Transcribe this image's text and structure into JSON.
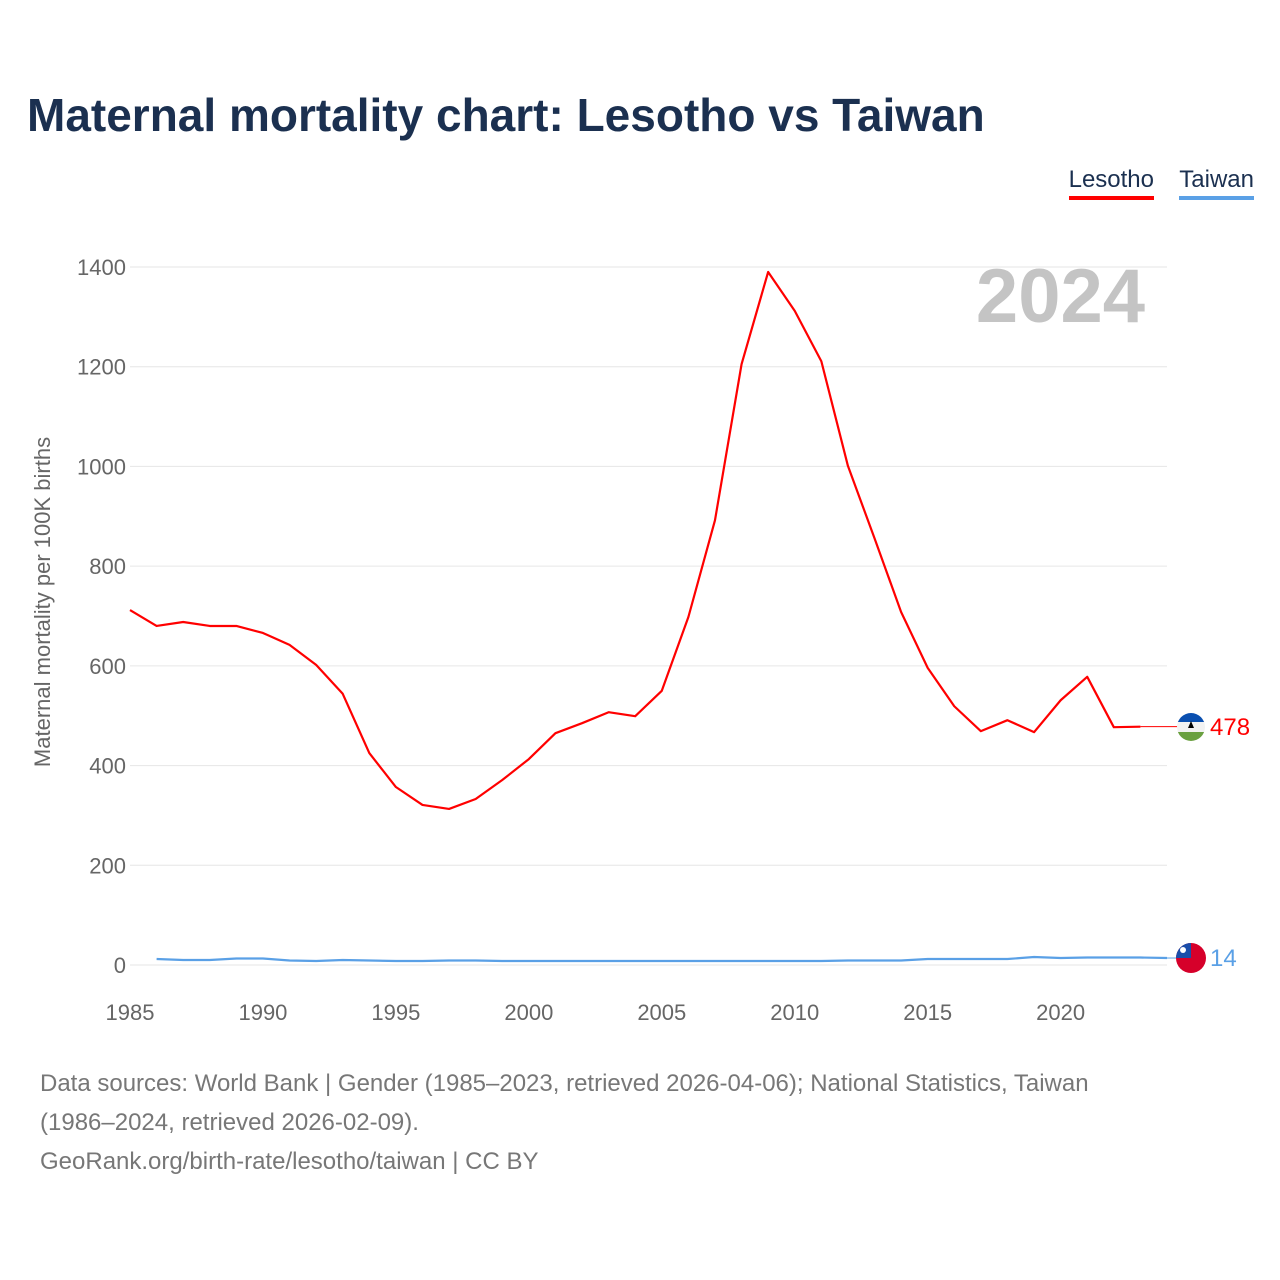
{
  "chart_data": {
    "type": "line",
    "title": "Maternal mortality chart: Lesotho vs Taiwan",
    "ylabel": "Maternal mortality per 100K births",
    "xlabel": "",
    "xlim": [
      1985,
      2024
    ],
    "ylim": [
      0,
      1400
    ],
    "x_ticks": [
      "1985",
      "1990",
      "1995",
      "2000",
      "2005",
      "2010",
      "2015",
      "2020"
    ],
    "y_ticks": [
      "0",
      "200",
      "400",
      "600",
      "800",
      "1000",
      "1200",
      "1400"
    ],
    "grid": true,
    "legend_placement": "top-right",
    "year_watermark": "2024",
    "series": [
      {
        "name": "Lesotho",
        "color": "#ff0000",
        "end_label": "478",
        "x": [
          1985,
          1986,
          1987,
          1988,
          1989,
          1990,
          1991,
          1992,
          1993,
          1994,
          1995,
          1996,
          1997,
          1998,
          1999,
          2000,
          2001,
          2002,
          2003,
          2004,
          2005,
          2006,
          2007,
          2008,
          2009,
          2010,
          2011,
          2012,
          2013,
          2014,
          2015,
          2016,
          2017,
          2018,
          2019,
          2020,
          2021,
          2022,
          2023
        ],
        "values": [
          712,
          680,
          688,
          680,
          680,
          666,
          642,
          602,
          544,
          425,
          357,
          321,
          313,
          333,
          371,
          413,
          465,
          485,
          507,
          499,
          550,
          698,
          892,
          1205,
          1390,
          1312,
          1211,
          1001,
          856,
          708,
          596,
          519,
          469,
          491,
          467,
          531,
          578,
          477,
          478
        ]
      },
      {
        "name": "Taiwan",
        "color": "#5aa0e6",
        "end_label": "14",
        "x": [
          1986,
          1987,
          1988,
          1989,
          1990,
          1991,
          1992,
          1993,
          1994,
          1995,
          1996,
          1997,
          1998,
          1999,
          2000,
          2001,
          2002,
          2003,
          2004,
          2005,
          2006,
          2007,
          2008,
          2009,
          2010,
          2011,
          2012,
          2013,
          2014,
          2015,
          2016,
          2017,
          2018,
          2019,
          2020,
          2021,
          2022,
          2023,
          2024
        ],
        "values": [
          12,
          10,
          10,
          13,
          13,
          9,
          8,
          10,
          9,
          8,
          8,
          9,
          9,
          8,
          8,
          8,
          8,
          8,
          8,
          8,
          8,
          8,
          8,
          8,
          8,
          8,
          9,
          9,
          9,
          12,
          12,
          12,
          12,
          16,
          14,
          15,
          15,
          15,
          14
        ]
      }
    ]
  },
  "footer": {
    "line1": "Data sources: World Bank | Gender (1985–2023, retrieved 2026-04-06); National Statistics, Taiwan",
    "line2": "(1986–2024, retrieved 2026-02-09).",
    "line3": "GeoRank.org/birth-rate/lesotho/taiwan | CC BY"
  }
}
